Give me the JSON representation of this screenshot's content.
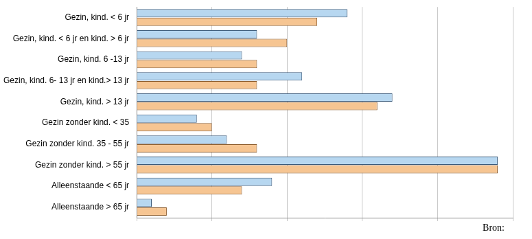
{
  "chart_data": {
    "type": "bar",
    "orientation": "horizontal",
    "categories": [
      "Gezin, kind. < 6 jr",
      "Gezin, kind. < 6 jr en kind. > 6 jr",
      "Gezin, kind. 6 -13 jr",
      "Gezin, kind. 6- 13 jr en kind.> 13 jr",
      "Gezin, kind. > 13 jr",
      "Gezin zonder kind. < 35",
      "Gezin zonder kind. 35 - 55 jr",
      "Gezin zonder kind. > 55 jr",
      "Alleenstaande < 65 jr",
      "Alleenstaande > 65 jr"
    ],
    "series": [
      {
        "color": "#b7d7f0",
        "values": [
          28,
          16,
          14,
          22,
          34,
          8,
          12,
          48,
          18,
          2
        ]
      },
      {
        "color": "#f6c592",
        "values": [
          24,
          20,
          16,
          16,
          32,
          10,
          16,
          48,
          14,
          4
        ]
      }
    ],
    "xlim": [
      0,
      50
    ],
    "xticks": [
      0,
      10,
      20,
      30,
      40,
      50
    ],
    "grid": true,
    "tick_labels": "y",
    "annotations": [
      "Bron:"
    ]
  }
}
